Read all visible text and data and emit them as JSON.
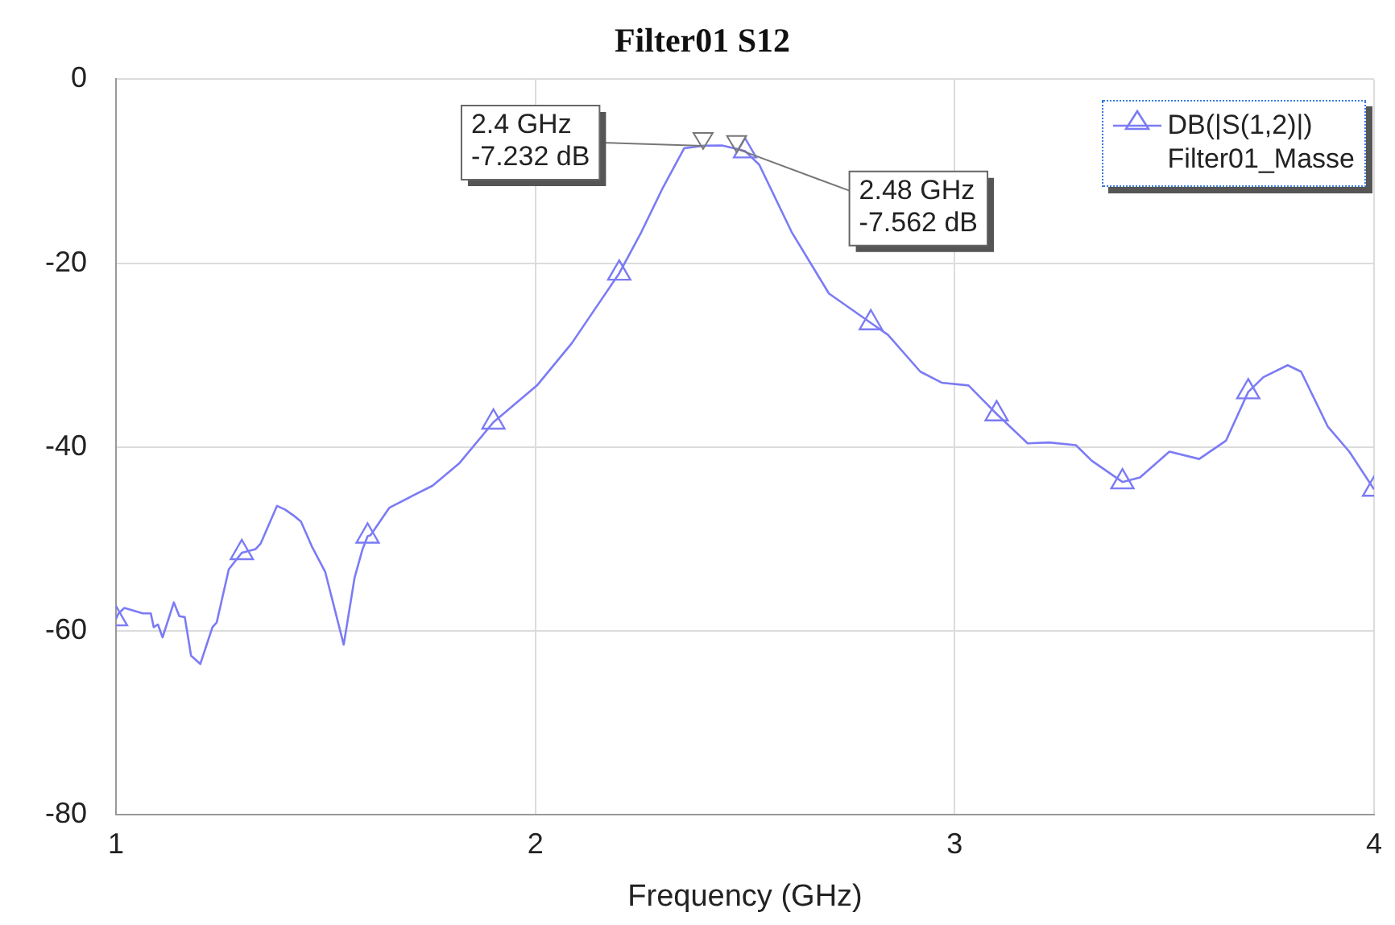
{
  "chart_data": {
    "type": "line",
    "title": "Filter01 S12",
    "xlabel": "Frequency (GHz)",
    "x": [
      1.0,
      1.006,
      1.02,
      1.064,
      1.083,
      1.09,
      1.1,
      1.111,
      1.138,
      1.151,
      1.164,
      1.179,
      1.201,
      1.23,
      1.24,
      1.269,
      1.3,
      1.333,
      1.345,
      1.384,
      1.403,
      1.425,
      1.441,
      1.467,
      1.499,
      1.543,
      1.569,
      1.588,
      1.6,
      1.607,
      1.652,
      1.703,
      1.755,
      1.818,
      1.9,
      2.004,
      2.087,
      2.2,
      2.253,
      2.304,
      2.355,
      2.4,
      2.445,
      2.48,
      2.5,
      2.534,
      2.611,
      2.7,
      2.8,
      2.841,
      2.918,
      2.969,
      3.033,
      3.1,
      3.174,
      3.225,
      3.289,
      3.327,
      3.4,
      3.442,
      3.512,
      3.583,
      3.647,
      3.7,
      3.736,
      3.794,
      3.826,
      3.89,
      3.941,
      4.0
    ],
    "series": [
      {
        "name": "DB(|S(1,2)|)\nFilter01_Masse",
        "color": "#7b7bf5",
        "marker": "none",
        "values": [
          -58.7,
          -58.1,
          -57.5,
          -58.1,
          -58.1,
          -59.6,
          -59.3,
          -60.7,
          -56.9,
          -58.4,
          -58.5,
          -62.7,
          -63.6,
          -59.6,
          -59.1,
          -53.3,
          -51.5,
          -51.1,
          -50.5,
          -46.4,
          -46.8,
          -47.5,
          -48.1,
          -50.8,
          -53.6,
          -61.5,
          -54.2,
          -51.1,
          -49.7,
          -49.6,
          -46.6,
          -45.4,
          -44.2,
          -41.8,
          -37.3,
          -33.3,
          -28.7,
          -21.1,
          -16.6,
          -11.8,
          -7.5,
          -7.232,
          -7.2,
          -7.562,
          -7.8,
          -9.3,
          -16.6,
          -23.3,
          -26.5,
          -27.8,
          -31.8,
          -33.0,
          -33.3,
          -36.4,
          -39.6,
          -39.5,
          -39.8,
          -41.5,
          -43.8,
          -43.3,
          -40.5,
          -41.3,
          -39.3,
          -34.0,
          -32.4,
          -31.1,
          -31.8,
          -37.8,
          -40.5,
          -44.6
        ]
      },
      {
        "type": "scatter",
        "color": "#7b7bf5",
        "x": [
          1.0,
          1.3,
          1.6,
          1.9,
          2.2,
          2.5,
          2.8,
          3.1,
          3.4,
          3.7,
          4.0
        ],
        "values": [
          -58.7,
          -51.5,
          -49.7,
          -37.3,
          -21.1,
          -7.8,
          -26.5,
          -36.4,
          -43.8,
          -34.0,
          -44.6
        ]
      }
    ],
    "xlim": [
      1,
      4
    ],
    "xticks": [
      1,
      2,
      3,
      4
    ],
    "ylim": [
      -80,
      0
    ],
    "yticks": [
      -80,
      -60,
      -40,
      -20,
      0
    ],
    "grid": true,
    "legend": "top right",
    "marker": "triangle",
    "line_style": "solid",
    "annotations": [
      {
        "text": "2.4 GHz\n-7.232 dB",
        "x": 2.4,
        "y": -7.232
      },
      {
        "text": "2.48 GHz\n-7.562 dB",
        "x": 2.48,
        "y": -7.562
      }
    ]
  }
}
